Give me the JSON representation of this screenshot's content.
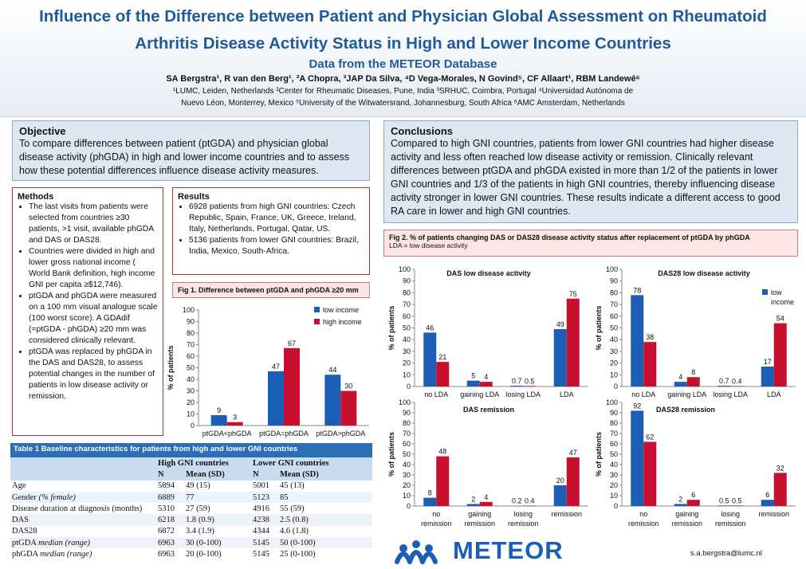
{
  "header": {
    "title_line1": "Influence of the Difference between Patient and Physician Global Assessment on Rheumatoid",
    "title_line2": "Arthritis Disease Activity Status in High and Lower Income Countries",
    "subtitle": "Data from the METEOR Database",
    "authors": "SA Bergstra¹, R van den Berg¹, ²A Chopra, ³JAP Da Silva, ⁴D Vega-Morales, N Govind⁵, CF Allaart¹, RBM Landewé⁶",
    "affil_line1": "¹LUMC, Leiden, Netherlands ²Center for Rheumatic Diseases, Pune, India ³SRHUC, Coimbra, Portugal ⁴Universidad Autónoma de",
    "affil_line2": "Nuevo Léon, Monterrey, Mexico ⁵University of the Witwatersrand, Johannesburg, South Africa ⁶AMC Amsterdam, Netherlands"
  },
  "objective": {
    "heading": "Objective",
    "text": "To compare differences between patient (ptGDA) and physician global disease activity (phGDA) in high and lower income countries and to assess how these potential differences influence disease activity measures."
  },
  "methods": {
    "heading": "Methods",
    "items": [
      "The last visits from patients were selected from countries ≥30 patients, >1 visit, available phGDA and DAS or DAS28.",
      "Countries were divided in high and lower gross national income ( World Bank definition, high income GNI per capita ≥$12,746).",
      "ptGDA and phGDA were measured on a 100 mm visual analogue scale (100 worst score). A GDAdif (=ptGDA - phGDA) ≥20 mm was considered clinically relevant.",
      "ptGDA was replaced by phGDA in the DAS and DAS28, to assess potential changes in the number of patients in low disease activity or remission."
    ]
  },
  "results": {
    "heading": "Results",
    "items": [
      "6928 patients from high GNI countries: Czech Republic, Spain, France, UK, Greece, Ireland, Italy, Netherlands, Portugal, Qatar, US.",
      "5136 patients from lower GNI countries: Brazil, India, Mexico, South-Africa."
    ]
  },
  "conclusions": {
    "heading": "Conclusions",
    "text": "Compared to high GNI countries, patients from lower GNI countries had higher disease activity and less often reached low disease activity or remission. Clinically relevant differences between ptGDA and phGDA existed in more than 1/2 of the patients in lower GNI countries and 1/3 of the patients in high GNI countries, thereby influencing disease activity stronger in lower GNI countries. These results indicate a different access to good RA care in lower and high GNI countries."
  },
  "fig1": {
    "title": "Fig 1. Difference between ptGDA and phGDA ≥20 mm"
  },
  "fig2": {
    "title": "Fig 2. % of patients changing DAS or DAS28 disease activity status after replacement of ptGDA by phGDA",
    "subtitle": "LDA = low disease activity"
  },
  "colors": {
    "low_income": "#1a5fb4",
    "high_income": "#c8102e",
    "title_blue": "#1f5b9c"
  },
  "table": {
    "title": "Table 1 Baseline characteristics for patients from high and lower GNI countries",
    "group_high": "High GNI countries",
    "group_low": "Lower GNI countries",
    "col_n": "N",
    "col_mean": "Mean (SD)",
    "rows": [
      {
        "label": "Age",
        "label_em": "",
        "hn": "5894",
        "hm": "49 (15)",
        "ln": "5001",
        "lm": "45 (13)"
      },
      {
        "label": "Gender ",
        "label_em": "(% female)",
        "hn": "6889",
        "hm": "77",
        "ln": "5123",
        "lm": "85"
      },
      {
        "label": "Disease duration at diagnosis (months)",
        "label_em": "",
        "hn": "5310",
        "hm": "27 (59)",
        "ln": "4916",
        "lm": "55 (59)"
      },
      {
        "label": "DAS",
        "label_em": "",
        "hn": "6218",
        "hm": "1.8 (0.9)",
        "ln": "4238",
        "lm": "2.5 (0.8)"
      },
      {
        "label": "DAS28",
        "label_em": "",
        "hn": "6872",
        "hm": "3.4 (1.9)",
        "ln": "4344",
        "lm": "4.6 (1.8)"
      },
      {
        "label": "ptGDA ",
        "label_em": "median (range)",
        "hn": "6963",
        "hm": "30 (0-100)",
        "ln": "5145",
        "lm": "50 (0-100)"
      },
      {
        "label": "phGDA ",
        "label_em": "median (range)",
        "hn": "6963",
        "hm": "20 (0-100)",
        "ln": "5145",
        "lm": "25 (0-100)"
      }
    ]
  },
  "logo": {
    "text": "METEOR"
  },
  "contact": "s.a.bergstra@lumc.nl",
  "chart_data": [
    {
      "id": "fig1",
      "type": "bar",
      "title": "",
      "ylabel": "% of patients",
      "ylim": [
        0,
        100
      ],
      "yticks": [
        0,
        10,
        20,
        30,
        40,
        50,
        60,
        70,
        80,
        90,
        100
      ],
      "categories": [
        "ptGDA<phGDA",
        "ptGDA=phGDA",
        "ptGDA>phGDA"
      ],
      "series": [
        {
          "name": "low income",
          "color": "#1a5fb4",
          "values": [
            9,
            47,
            44
          ],
          "labels": [
            "9",
            "47",
            "44"
          ]
        },
        {
          "name": "high income",
          "color": "#c8102e",
          "values": [
            3,
            67,
            30
          ],
          "labels": [
            "3",
            "67",
            "30"
          ]
        }
      ],
      "legend": "top-right"
    },
    {
      "id": "das_lda",
      "type": "bar",
      "title": "DAS low disease activity",
      "ylabel": "% of patients",
      "ylim": [
        0,
        100
      ],
      "yticks": [
        0,
        10,
        20,
        30,
        40,
        50,
        60,
        70,
        80,
        90,
        100
      ],
      "categories": [
        "no LDA",
        "gaining LDA",
        "losing LDA",
        "LDA"
      ],
      "series": [
        {
          "name": "low income",
          "color": "#1a5fb4",
          "values": [
            46,
            5,
            0.7,
            49
          ],
          "labels": [
            "46",
            "5",
            "0.7",
            "49"
          ]
        },
        {
          "name": "high income",
          "color": "#c8102e",
          "values": [
            21,
            4,
            0.5,
            75
          ],
          "labels": [
            "21",
            "4",
            "0.5",
            "75"
          ]
        }
      ]
    },
    {
      "id": "das28_lda",
      "type": "bar",
      "title": "DAS28 low disease activity",
      "ylabel": "% of patients",
      "ylim": [
        0,
        100
      ],
      "yticks": [
        0,
        10,
        20,
        30,
        40,
        50,
        60,
        70,
        80,
        90,
        100
      ],
      "categories": [
        "no LDA",
        "gaining LDA",
        "losing LDA",
        "LDA"
      ],
      "series": [
        {
          "name": "low income",
          "color": "#1a5fb4",
          "values": [
            78,
            4,
            0.7,
            17
          ],
          "labels": [
            "78",
            "4",
            "0.7",
            "17"
          ]
        },
        {
          "name": "high income",
          "color": "#c8102e",
          "values": [
            38,
            8,
            0.4,
            54
          ],
          "labels": [
            "38",
            "8",
            "0.4",
            "54"
          ]
        }
      ],
      "legend": "top-right",
      "legend_lines": [
        "low",
        "income"
      ]
    },
    {
      "id": "das_rem",
      "type": "bar",
      "title": "DAS remission",
      "ylabel": "% of patients",
      "ylim": [
        0,
        100
      ],
      "yticks": [
        0,
        10,
        20,
        30,
        40,
        50,
        60,
        70,
        80,
        90,
        100
      ],
      "categories": [
        "no remission",
        "gaining remission",
        "losing remission",
        "remission"
      ],
      "series": [
        {
          "name": "low income",
          "color": "#1a5fb4",
          "values": [
            8,
            2,
            0.2,
            20
          ],
          "labels": [
            "8",
            "2",
            "0.2",
            "20"
          ]
        },
        {
          "name": "high income",
          "color": "#c8102e",
          "values": [
            48,
            4,
            0.4,
            47
          ],
          "labels": [
            "48",
            "4",
            "0.4",
            "47"
          ]
        }
      ]
    },
    {
      "id": "das28_rem",
      "type": "bar",
      "title": "DAS28 remission",
      "ylabel": "% of patients",
      "ylim": [
        0,
        100
      ],
      "yticks": [
        0,
        10,
        20,
        30,
        40,
        50,
        60,
        70,
        80,
        90,
        100
      ],
      "categories": [
        "no remission",
        "gaining remission",
        "losing remission",
        "remission"
      ],
      "series": [
        {
          "name": "low income",
          "color": "#1a5fb4",
          "values": [
            92,
            2,
            0.5,
            6
          ],
          "labels": [
            "92",
            "2",
            "0.5",
            "6"
          ]
        },
        {
          "name": "high income",
          "color": "#c8102e",
          "values": [
            62,
            6,
            0.5,
            32
          ],
          "labels": [
            "62",
            "6",
            "0.5",
            "32"
          ]
        }
      ]
    }
  ]
}
